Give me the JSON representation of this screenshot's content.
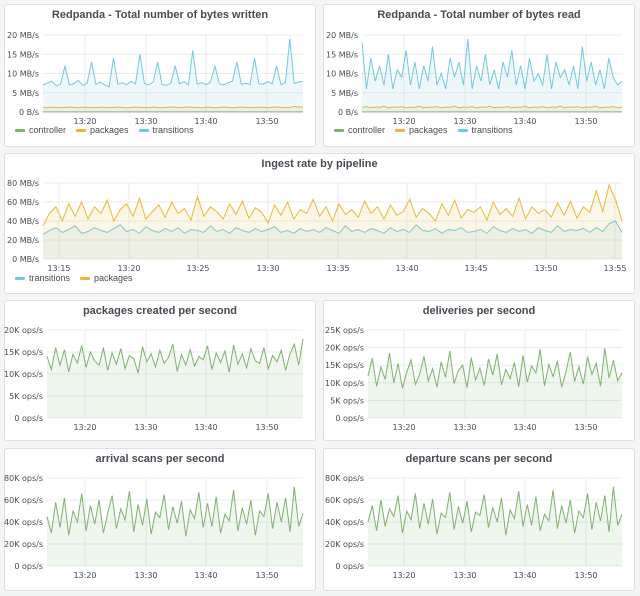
{
  "colors": {
    "transitions": "#73c9dd",
    "packages": "#eab839",
    "controller": "#7eb26d",
    "green": "#7eb26d",
    "grid": "#e9ecee"
  },
  "chart_data": [
    {
      "id": "bytes_written",
      "type": "line",
      "title": "Redpanda - Total number of bytes written",
      "ylim": [
        0,
        20
      ],
      "yticks": [
        "0 B/s",
        "5 MB/s",
        "10 MB/s",
        "15 MB/s",
        "20 MB/s"
      ],
      "xticks": [
        "13:20",
        "13:30",
        "13:40",
        "13:50"
      ],
      "legend": [
        "controller",
        "packages",
        "transitions"
      ],
      "series": [
        {
          "name": "controller",
          "values": [
            0.02,
            0.02,
            0.02,
            0.02,
            0.02,
            0.02,
            0.02,
            0.02,
            0.02,
            0.02,
            0.02,
            0.02,
            0.02,
            0.02,
            0.02,
            0.02,
            0.02,
            0.02,
            0.02,
            0.02,
            0.02,
            0.02,
            0.02,
            0.02,
            0.02,
            0.02,
            0.02,
            0.02,
            0.02,
            0.02,
            0.02,
            0.02,
            0.02,
            0.02,
            0.02,
            0.02,
            0.02,
            0.02,
            0.02,
            0.02,
            0.02,
            0.02,
            0.02,
            0.02,
            0.02,
            0.02,
            0.02,
            0.02,
            0.02,
            0.02,
            0.02,
            0.02,
            0.02,
            0.02,
            0.02,
            0.02,
            0.02,
            0.02,
            0.02,
            0.02
          ]
        },
        {
          "name": "packages",
          "values": [
            1.2,
            1.1,
            1.3,
            1.2,
            1.1,
            1.2,
            1.3,
            1.2,
            1.1,
            1.3,
            1.2,
            1.2,
            1.1,
            1.3,
            1.2,
            1.1,
            1.2,
            1.3,
            1.2,
            1.1,
            1.2,
            1.3,
            1.2,
            1.2,
            1.1,
            1.3,
            1.2,
            1.1,
            1.2,
            1.3,
            1.2,
            1.1,
            1.2,
            1.3,
            1.2,
            1.2,
            1.1,
            1.3,
            1.2,
            1.1,
            1.2,
            1.3,
            1.2,
            1.1,
            1.2,
            1.3,
            1.2,
            1.2,
            1.1,
            1.3,
            1.2,
            1.1,
            1.2,
            1.3,
            1.2,
            1.1,
            1.2,
            1.4,
            1.3,
            1.2
          ]
        },
        {
          "name": "transitions",
          "values": [
            7,
            7.5,
            8,
            6.8,
            7.2,
            12,
            7,
            7.4,
            8.2,
            6.9,
            7.5,
            13,
            7.2,
            7.8,
            7,
            6.5,
            14,
            7.2,
            7.6,
            7.1,
            8,
            7.3,
            15,
            7.4,
            7,
            7.8,
            13,
            7.2,
            6.9,
            7.5,
            12,
            7.3,
            7.9,
            7,
            16,
            7.2,
            7.6,
            7.1,
            7.8,
            12,
            7.3,
            7,
            7.6,
            8,
            13,
            7.2,
            7.5,
            7.1,
            14,
            7.4,
            7.2,
            7.9,
            7.3,
            12,
            7.1,
            7.6,
            19,
            7.4,
            7.8,
            8
          ]
        }
      ]
    },
    {
      "id": "bytes_read",
      "type": "line",
      "title": "Redpanda - Total number of bytes read",
      "ylim": [
        0,
        20
      ],
      "yticks": [
        "0 B/s",
        "5 MB/s",
        "10 MB/s",
        "15 MB/s",
        "20 MB/s"
      ],
      "xticks": [
        "13:20",
        "13:30",
        "13:40",
        "13:50"
      ],
      "legend": [
        "controller",
        "packages",
        "transitions"
      ],
      "series": [
        {
          "name": "controller",
          "values": [
            0.02,
            0.02,
            0.02,
            0.02,
            0.02,
            0.02,
            0.02,
            0.02,
            0.02,
            0.02,
            0.02,
            0.02,
            0.02,
            0.02,
            0.02,
            0.02,
            0.02,
            0.02,
            0.02,
            0.02,
            0.02,
            0.02,
            0.02,
            0.02,
            0.02,
            0.02,
            0.02,
            0.02,
            0.02,
            0.02,
            0.02,
            0.02,
            0.02,
            0.02,
            0.02,
            0.02,
            0.02,
            0.02,
            0.02,
            0.02,
            0.02,
            0.02,
            0.02,
            0.02,
            0.02,
            0.02,
            0.02,
            0.02,
            0.02,
            0.02,
            0.02,
            0.02,
            0.02,
            0.02,
            0.02,
            0.02,
            0.02,
            0.02,
            0.02,
            0.02
          ]
        },
        {
          "name": "packages",
          "values": [
            1.2,
            1.4,
            1.1,
            1.3,
            1.2,
            1.5,
            1.1,
            1.3,
            1.2,
            1.4,
            1.1,
            1.3,
            1.2,
            1.5,
            1.1,
            1.3,
            1.2,
            1.4,
            1.1,
            1.3,
            1.2,
            1.5,
            1.1,
            1.3,
            1.2,
            1.4,
            1.1,
            1.3,
            1.2,
            1.5,
            1.1,
            1.3,
            1.2,
            1.4,
            1.1,
            1.3,
            1.2,
            1.5,
            1.1,
            1.3,
            1.2,
            1.4,
            1.1,
            1.3,
            1.2,
            1.5,
            1.1,
            1.3,
            1.2,
            1.4,
            1.1,
            1.3,
            1.2,
            1.5,
            1.1,
            1.3,
            1.2,
            1.4,
            1.1,
            1.3
          ]
        },
        {
          "name": "transitions",
          "values": [
            18,
            6,
            14,
            8,
            12,
            7,
            15,
            6,
            11,
            9,
            16,
            7,
            13,
            6,
            12,
            8,
            17,
            7,
            10,
            6,
            14,
            9,
            13,
            7,
            19,
            6,
            12,
            8,
            15,
            7,
            11,
            6,
            13,
            9,
            16,
            7,
            12,
            6,
            14,
            8,
            10,
            7,
            15,
            6,
            13,
            9,
            11,
            7,
            12,
            6,
            17,
            8,
            13,
            7,
            11,
            6,
            14,
            9,
            7,
            8
          ]
        }
      ]
    },
    {
      "id": "ingest_rate",
      "type": "area",
      "title": "Ingest rate by pipeline",
      "ylim": [
        0,
        80
      ],
      "yticks": [
        "0 MB/s",
        "20 MB/s",
        "40 MB/s",
        "60 MB/s",
        "80 MB/s"
      ],
      "xticks": [
        "13:15",
        "13:20",
        "13:25",
        "13:30",
        "13:35",
        "13:40",
        "13:45",
        "13:50",
        "13:55"
      ],
      "legend": [
        "transitions",
        "packages"
      ],
      "series": [
        {
          "name": "transitions",
          "values": [
            26,
            30,
            33,
            28,
            31,
            35,
            27,
            29,
            33,
            30,
            28,
            32,
            36,
            29,
            31,
            27,
            34,
            30,
            28,
            32,
            29,
            33,
            27,
            31,
            30,
            28,
            35,
            29,
            31,
            27,
            33,
            30,
            28,
            32,
            29,
            31,
            34,
            28,
            30,
            27,
            32,
            29,
            31,
            28,
            33,
            30,
            27,
            35,
            29,
            31,
            28,
            32,
            30,
            27,
            33,
            29,
            31,
            28,
            36,
            30,
            29,
            32,
            27,
            31,
            30,
            33,
            28,
            29,
            31,
            27,
            34,
            30,
            28,
            32,
            29,
            31,
            27,
            33,
            30,
            28,
            35,
            29,
            31,
            30,
            32,
            28,
            33,
            29,
            37,
            40,
            28
          ]
        },
        {
          "name": "packages",
          "values": [
            35,
            48,
            55,
            40,
            58,
            45,
            60,
            42,
            55,
            48,
            62,
            40,
            52,
            58,
            45,
            64,
            42,
            50,
            57,
            44,
            60,
            48,
            53,
            41,
            66,
            45,
            55,
            50,
            42,
            58,
            47,
            61,
            43,
            54,
            49,
            38,
            57,
            46,
            60,
            42,
            52,
            48,
            63,
            45,
            55,
            40,
            58,
            47,
            52,
            44,
            61,
            48,
            55,
            42,
            57,
            46,
            50,
            63,
            44,
            53,
            48,
            40,
            58,
            46,
            62,
            43,
            52,
            49,
            55,
            41,
            60,
            47,
            53,
            45,
            64,
            42,
            55,
            48,
            52,
            44,
            59,
            46,
            61,
            43,
            55,
            49,
            72,
            50,
            78,
            62,
            40
          ]
        }
      ]
    },
    {
      "id": "packages_created",
      "type": "area",
      "title": "packages created per second",
      "ylim": [
        0,
        20000
      ],
      "yticks": [
        "0 ops/s",
        "5K ops/s",
        "10K ops/s",
        "15K ops/s",
        "20K ops/s"
      ],
      "xticks": [
        "13:20",
        "13:30",
        "13:40",
        "13:50"
      ],
      "series": [
        {
          "name": "",
          "values": [
            14000,
            11000,
            16000,
            12000,
            15500,
            10500,
            14500,
            12500,
            16500,
            11500,
            15000,
            13000,
            12000,
            16000,
            10800,
            14800,
            12200,
            15800,
            11200,
            14200,
            13500,
            10200,
            16200,
            12800,
            14600,
            11600,
            15400,
            12400,
            13800,
            16800,
            10600,
            14400,
            12000,
            15600,
            11800,
            14000,
            13200,
            16400,
            11000,
            14800,
            12600,
            15200,
            10400,
            16600,
            12200,
            14600,
            11400,
            15800,
            13000,
            12400,
            16000,
            11200,
            14200,
            12800,
            15400,
            10800,
            14600,
            16800,
            12000,
            18000
          ]
        }
      ]
    },
    {
      "id": "deliveries",
      "type": "area",
      "title": "deliveries per second",
      "ylim": [
        0,
        25000
      ],
      "yticks": [
        "0 ops/s",
        "5K ops/s",
        "10K ops/s",
        "15K ops/s",
        "20K ops/s",
        "25K ops/s"
      ],
      "xticks": [
        "13:20",
        "13:30",
        "13:40",
        "13:50"
      ],
      "series": [
        {
          "name": "",
          "values": [
            12000,
            17000,
            9000,
            14500,
            11000,
            18500,
            10000,
            15500,
            8500,
            13000,
            16500,
            9500,
            12500,
            17500,
            10500,
            14000,
            8800,
            16000,
            11500,
            19000,
            9800,
            13500,
            15000,
            8600,
            17200,
            10800,
            14200,
            9200,
            16800,
            12200,
            18200,
            9400,
            13800,
            11200,
            15800,
            8900,
            17800,
            10200,
            14800,
            12800,
            19500,
            9100,
            15200,
            11800,
            16200,
            8700,
            13200,
            18800,
            10400,
            14600,
            9600,
            17400,
            12400,
            15600,
            9000,
            19800,
            11400,
            16400,
            10600,
            12800
          ]
        }
      ]
    },
    {
      "id": "arrival_scans",
      "type": "area",
      "title": "arrival scans per second",
      "ylim": [
        0,
        80000
      ],
      "yticks": [
        "0 ops/s",
        "20K ops/s",
        "40K ops/s",
        "60K ops/s",
        "80K ops/s"
      ],
      "xticks": [
        "13:20",
        "13:30",
        "13:40",
        "13:50"
      ],
      "series": [
        {
          "name": "",
          "values": [
            45000,
            30000,
            58000,
            35000,
            62000,
            28000,
            50000,
            40000,
            66000,
            32000,
            55000,
            38000,
            60000,
            30000,
            48000,
            64000,
            34000,
            52000,
            42000,
            68000,
            31000,
            56000,
            37000,
            61000,
            29000,
            49000,
            44000,
            65000,
            33000,
            54000,
            39000,
            59000,
            27000,
            51000,
            43000,
            67000,
            35000,
            57000,
            36000,
            63000,
            30000,
            47000,
            41000,
            69000,
            32000,
            53000,
            38000,
            60000,
            28000,
            50000,
            45000,
            66000,
            34000,
            58000,
            40000,
            62000,
            31000,
            72000,
            36000,
            48000
          ]
        }
      ]
    },
    {
      "id": "departure_scans",
      "type": "area",
      "title": "departure scans per second",
      "ylim": [
        0,
        80000
      ],
      "yticks": [
        "0 ops/s",
        "20K ops/s",
        "40K ops/s",
        "60K ops/s",
        "80K ops/s"
      ],
      "xticks": [
        "13:20",
        "13:30",
        "13:40",
        "13:50"
      ],
      "series": [
        {
          "name": "",
          "values": [
            40000,
            55000,
            32000,
            60000,
            36000,
            52000,
            45000,
            64000,
            30000,
            50000,
            42000,
            66000,
            34000,
            57000,
            38000,
            61000,
            29000,
            48000,
            44000,
            67000,
            33000,
            54000,
            39000,
            59000,
            31000,
            49000,
            46000,
            65000,
            35000,
            53000,
            40000,
            62000,
            28000,
            51000,
            43000,
            68000,
            36000,
            56000,
            37000,
            63000,
            32000,
            47000,
            41000,
            69000,
            34000,
            55000,
            39000,
            60000,
            30000,
            50000,
            44000,
            66000,
            33000,
            58000,
            41000,
            64000,
            31000,
            72000,
            37000,
            47000
          ]
        }
      ]
    }
  ]
}
